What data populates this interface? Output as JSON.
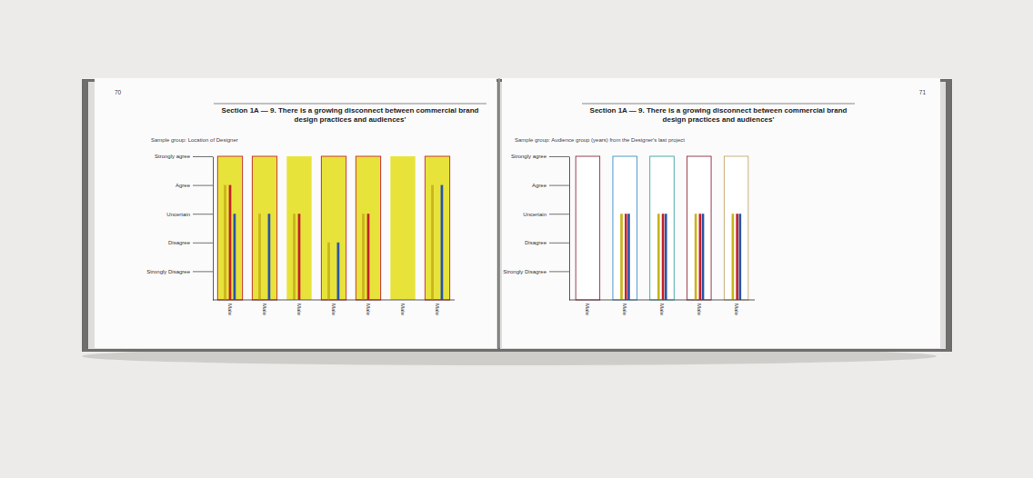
{
  "chart_data": [
    {
      "type": "bar",
      "title": "Section 1A — 9. There is a growing disconnect between commercial brand design practices and audiences'",
      "subtitle": "Sample group: Location of Designer",
      "annotations": [
        "70"
      ],
      "categories": [
        "Male",
        "Male",
        "Male",
        "Male",
        "Male",
        "Male",
        "Male"
      ],
      "series": [
        {
          "color": "#c9b41c",
          "values": [
            4,
            3,
            3,
            2,
            3,
            null,
            4
          ]
        },
        {
          "color": "#c4222c",
          "values": [
            4,
            null,
            3,
            null,
            3,
            null,
            null
          ]
        },
        {
          "color": "#2b55a8",
          "values": [
            3,
            3,
            null,
            2,
            null,
            null,
            4
          ]
        }
      ],
      "ylim": [
        0,
        5
      ],
      "yticks": [
        {
          "value": 5,
          "label": "Strongly agree"
        },
        {
          "value": 4,
          "label": "Agree"
        },
        {
          "value": 3,
          "label": "Uncertain"
        },
        {
          "value": 2,
          "label": "Disagree"
        },
        {
          "value": 1,
          "label": "Strongly Disagree"
        }
      ],
      "grid": false
    },
    {
      "type": "bar",
      "title": "Section 1A — 9. There is a growing disconnect between commercial brand design practices and audiences'",
      "subtitle": "Sample group: Audience group (years) from the Designer's last project",
      "annotations": [
        "71"
      ],
      "categories": [
        "Male",
        "Male",
        "Male",
        "Male",
        "Male"
      ],
      "series": [
        {
          "color": "#c9b41c",
          "values": [
            null,
            3,
            3,
            3,
            3
          ]
        },
        {
          "color": "#c4222c",
          "values": [
            null,
            3,
            3,
            3,
            3
          ]
        },
        {
          "color": "#2b55a8",
          "values": [
            null,
            3,
            3,
            3,
            3
          ]
        }
      ],
      "ylim": [
        0,
        5
      ],
      "yticks": [
        {
          "value": 5,
          "label": "Strongly agree"
        },
        {
          "value": 4,
          "label": "Agree"
        },
        {
          "value": 3,
          "label": "Uncertain"
        },
        {
          "value": 2,
          "label": "Disagree"
        },
        {
          "value": 1,
          "label": "Strongly Disagree"
        }
      ],
      "grid": false
    }
  ]
}
